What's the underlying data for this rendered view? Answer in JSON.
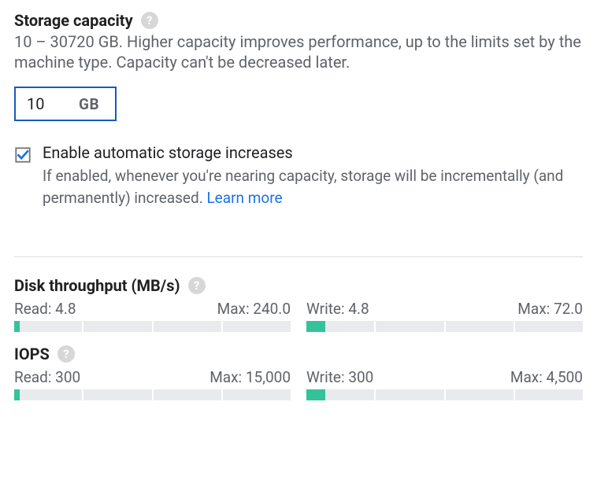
{
  "storage": {
    "heading": "Storage capacity",
    "help_icon": "?",
    "description": "10 – 30720 GB. Higher capacity improves performance, up to the limits set by the machine type. Capacity can't be decreased later.",
    "value": "10",
    "unit": "GB",
    "checkbox": {
      "checked": true,
      "title": "Enable automatic storage increases",
      "description_prefix": "If enabled, whenever you're nearing capacity, storage will be incrementally (and permanently) increased. ",
      "learn_more": "Learn more"
    }
  },
  "throughput": {
    "heading": "Disk throughput (MB/s)",
    "help_icon": "?",
    "read": {
      "label": "Read: 4.8",
      "max_label": "Max: 240.0",
      "value": 4.8,
      "max": 240.0,
      "fill_pct": 2.0,
      "segments": 4,
      "bar_empty_color": "#e8eaed",
      "bar_fill_color": "#34c29b"
    },
    "write": {
      "label": "Write: 4.8",
      "max_label": "Max: 72.0",
      "value": 4.8,
      "max": 72.0,
      "fill_pct": 6.7,
      "segments": 4,
      "bar_empty_color": "#e8eaed",
      "bar_fill_color": "#34c29b"
    }
  },
  "iops": {
    "heading": "IOPS",
    "help_icon": "?",
    "read": {
      "label": "Read: 300",
      "max_label": "Max: 15,000",
      "value": 300,
      "max": 15000,
      "fill_pct": 2.0,
      "segments": 4,
      "bar_empty_color": "#e8eaed",
      "bar_fill_color": "#34c29b"
    },
    "write": {
      "label": "Write: 300",
      "max_label": "Max: 4,500",
      "value": 300,
      "max": 4500,
      "fill_pct": 6.7,
      "segments": 4,
      "bar_empty_color": "#e8eaed",
      "bar_fill_color": "#34c29b"
    }
  },
  "colors": {
    "accent": "#1a73e8",
    "input_border": "#185abc",
    "bar_fill": "#34c29b",
    "bar_empty": "#e8eaed",
    "text_secondary": "#5f6368",
    "divider": "#dadce0",
    "checkbox_check": "#1a73e8"
  }
}
